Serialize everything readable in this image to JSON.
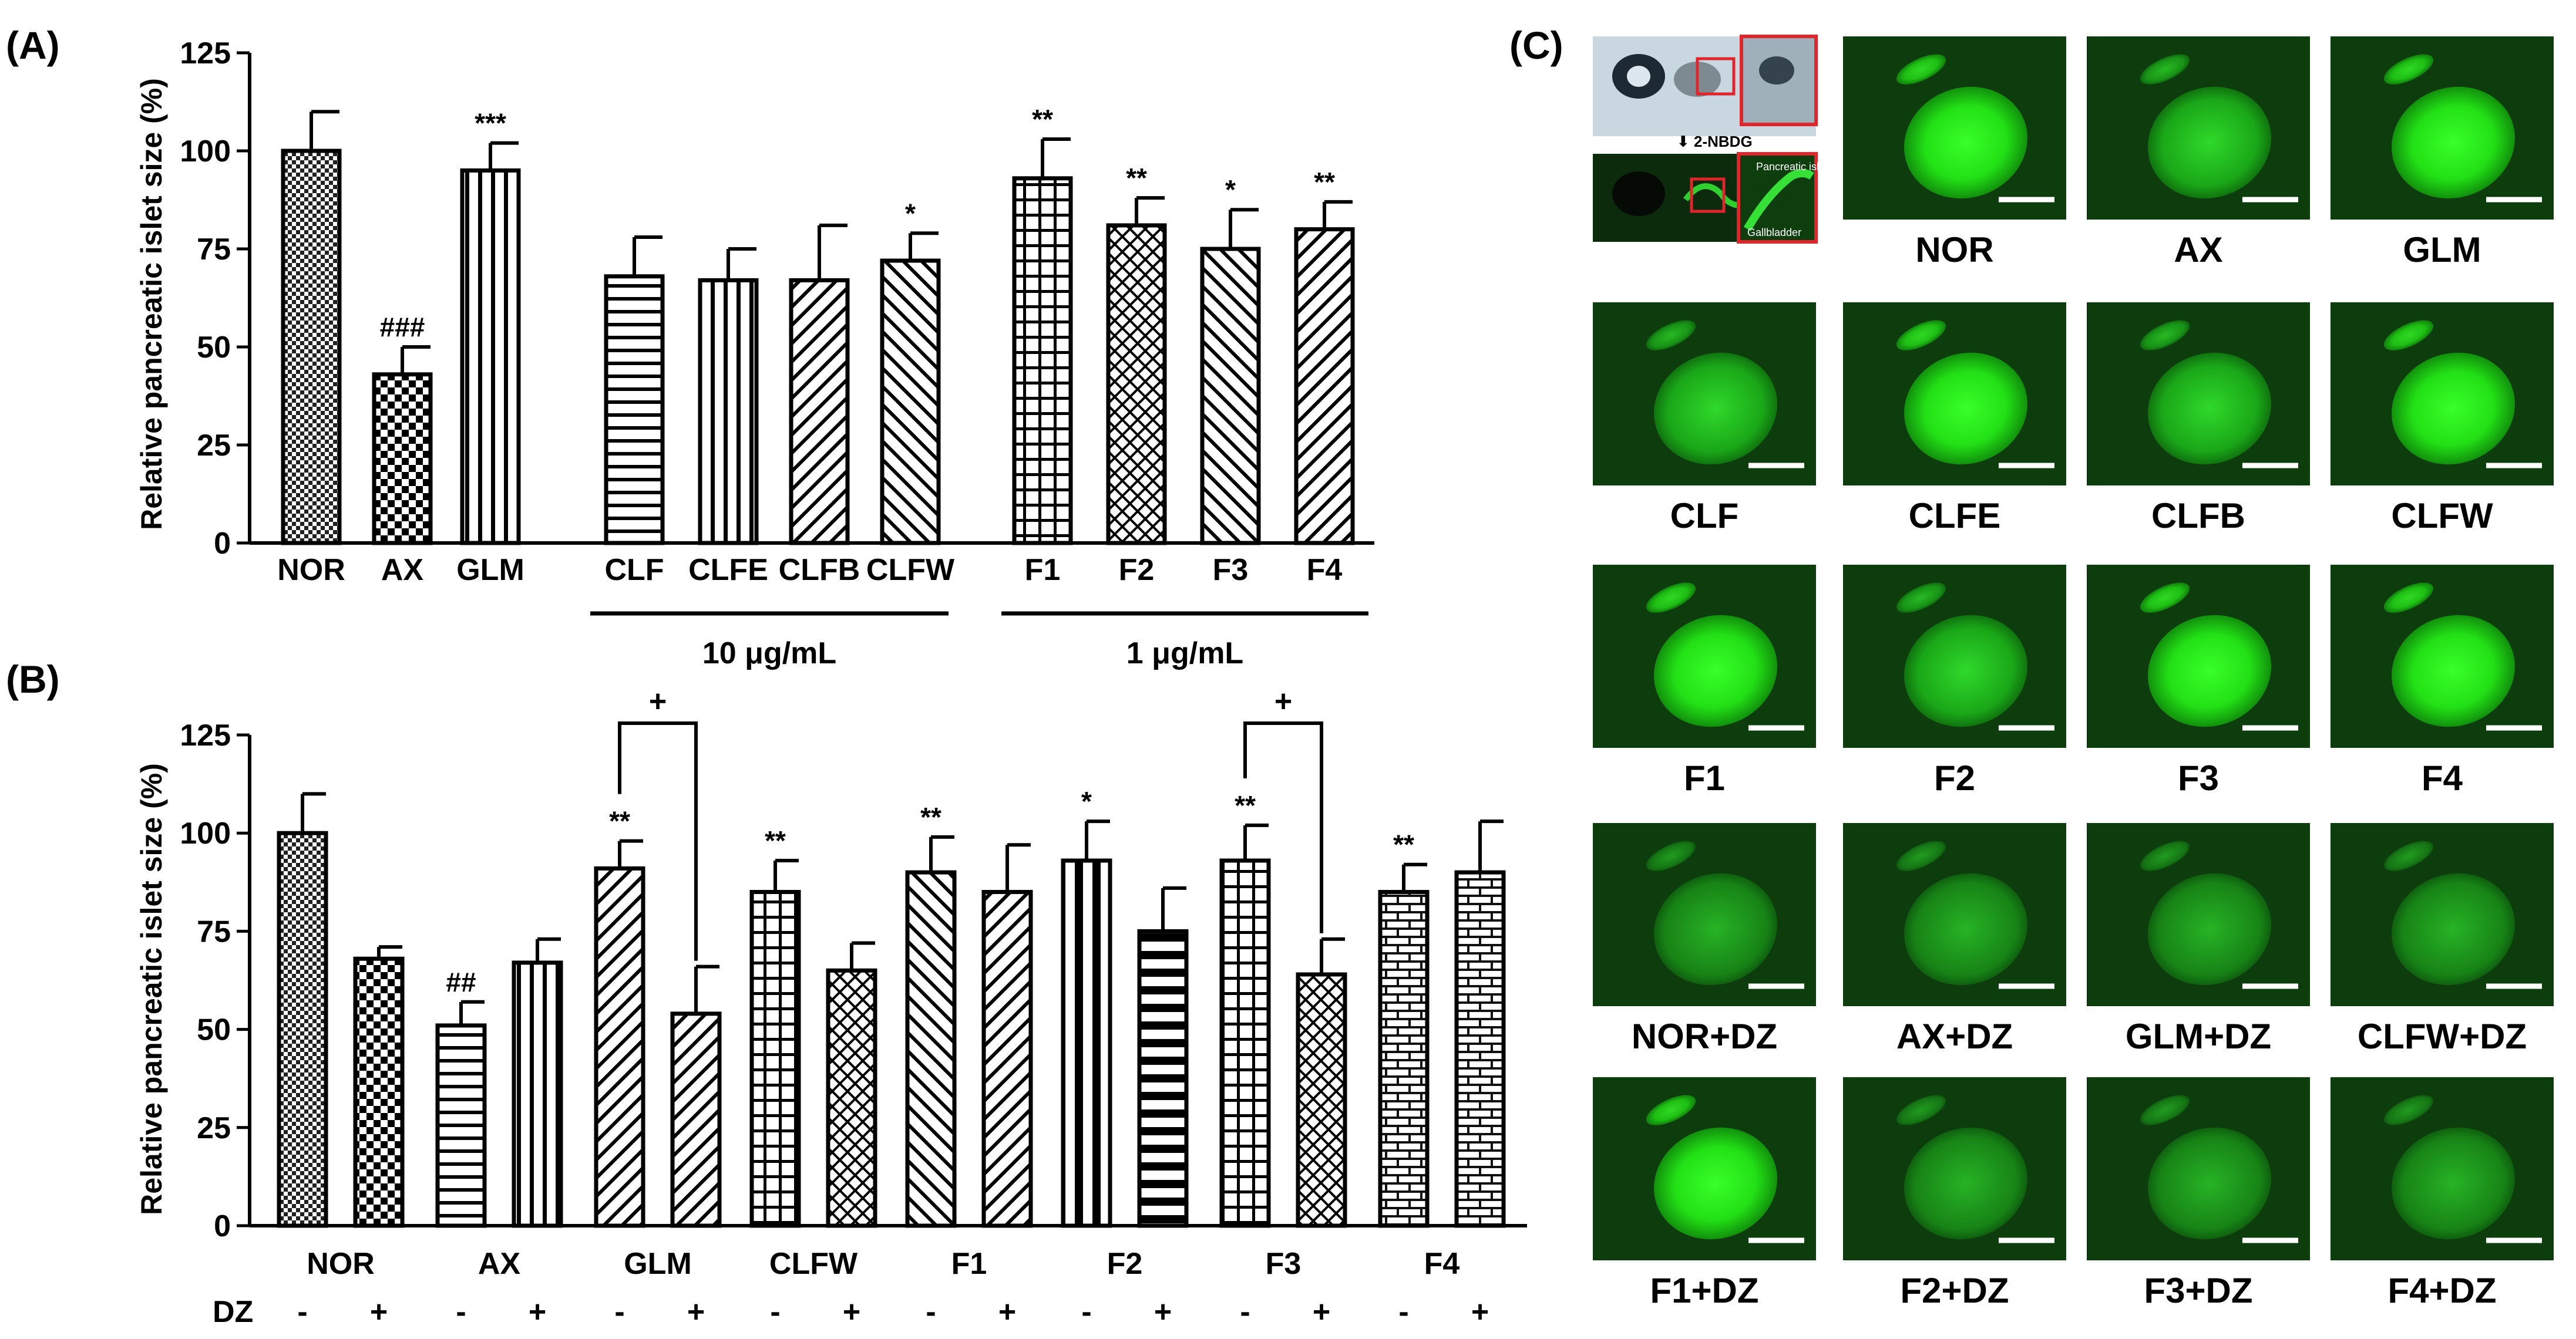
{
  "panels": {
    "a_label": "(A)",
    "b_label": "(B)",
    "c_label": "(C)"
  },
  "chart_data": [
    {
      "type": "bar",
      "panel": "(A)",
      "ylabel": "Relative pancreatic islet size (%)",
      "ylim": [
        0,
        125
      ],
      "yticks": [
        0,
        25,
        50,
        75,
        100,
        125
      ],
      "categories": [
        "NOR",
        "AX",
        "GLM",
        "CLF",
        "CLFE",
        "CLFB",
        "CLFW",
        "F1",
        "F2",
        "F3",
        "F4"
      ],
      "values": [
        100,
        43,
        95,
        68,
        67,
        67,
        72,
        93,
        81,
        75,
        80
      ],
      "errors": [
        10,
        7,
        7,
        10,
        8,
        14,
        7,
        10,
        7,
        10,
        7
      ],
      "significance": [
        "",
        "###",
        "***",
        "",
        "",
        "",
        "*",
        "**",
        "**",
        "*",
        "**"
      ],
      "groups": [
        {
          "label": "10 μg/mL",
          "from": "CLF",
          "to": "CLFW"
        },
        {
          "label": "1 μg/mL",
          "from": "F1",
          "to": "F4"
        }
      ]
    },
    {
      "type": "bar",
      "panel": "(B)",
      "ylabel": "Relative pancreatic islet size (%)",
      "ylim": [
        0,
        125
      ],
      "yticks": [
        0,
        25,
        50,
        75,
        100,
        125
      ],
      "row_label": "DZ",
      "minus": "-",
      "plus": "+",
      "categories": [
        "NOR",
        "AX",
        "GLM",
        "CLFW",
        "F1",
        "F2",
        "F3",
        "F4"
      ],
      "series": [
        {
          "values": [
            100,
            51,
            91,
            85,
            90,
            93,
            93,
            85
          ],
          "errors": [
            10,
            6,
            7,
            8,
            9,
            10,
            9,
            7
          ],
          "significance": [
            "",
            "##",
            "**",
            "**",
            "**",
            "*",
            "**",
            "**"
          ]
        },
        {
          "values": [
            68,
            67,
            54,
            65,
            85,
            75,
            64,
            90
          ],
          "errors": [
            3,
            6,
            12,
            7,
            12,
            11,
            9,
            13
          ],
          "significance": [
            "",
            "",
            "",
            "",
            "",
            "",
            "",
            ""
          ]
        }
      ],
      "brackets": [
        {
          "category": "GLM",
          "label": "+"
        },
        {
          "category": "F3",
          "label": "+"
        }
      ]
    }
  ],
  "images": {
    "overview": {
      "arrow_label": "⬇ 2-NBDG",
      "inset_labels": [
        "Pancreatic islet",
        "Gallbladder"
      ]
    },
    "labels": [
      "NOR",
      "AX",
      "GLM",
      "CLF",
      "CLFE",
      "CLFB",
      "CLFW",
      "F1",
      "F2",
      "F3",
      "F4",
      "NOR+DZ",
      "AX+DZ",
      "GLM+DZ",
      "CLFW+DZ",
      "F1+DZ",
      "F2+DZ",
      "F3+DZ",
      "F4+DZ"
    ]
  }
}
